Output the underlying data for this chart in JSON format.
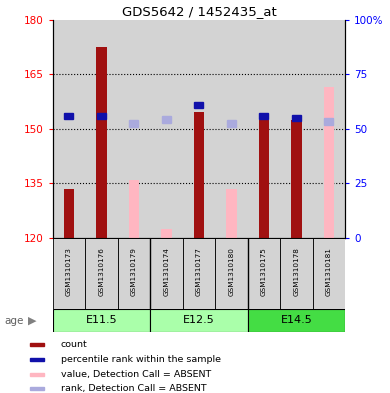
{
  "title": "GDS5642 / 1452435_at",
  "samples": [
    "GSM1310173",
    "GSM1310176",
    "GSM1310179",
    "GSM1310174",
    "GSM1310177",
    "GSM1310180",
    "GSM1310175",
    "GSM1310178",
    "GSM1310181"
  ],
  "age_groups": [
    {
      "label": "E11.5",
      "start": 0,
      "end": 3,
      "color": "#B8F0B8"
    },
    {
      "label": "E12.5",
      "start": 3,
      "end": 6,
      "color": "#B8F0B8"
    },
    {
      "label": "E14.5",
      "start": 6,
      "end": 9,
      "color": "#44DD44"
    }
  ],
  "ylim_left": [
    120,
    180
  ],
  "ylim_right": [
    0,
    100
  ],
  "yticks_left": [
    120,
    135,
    150,
    165,
    180
  ],
  "yticks_right": [
    0,
    25,
    50,
    75,
    100
  ],
  "ytick_labels_right": [
    "0",
    "25",
    "50",
    "75",
    "100%"
  ],
  "red_bar_values": [
    133.5,
    172.5,
    null,
    null,
    154.5,
    null,
    152.5,
    152.5,
    null
  ],
  "pink_bar_values": [
    null,
    null,
    136.0,
    122.5,
    null,
    133.5,
    null,
    null,
    161.5
  ],
  "blue_square_values": [
    153.5,
    153.5,
    null,
    null,
    156.5,
    null,
    153.5,
    153.0,
    null
  ],
  "lightblue_square_values": [
    null,
    null,
    151.5,
    152.5,
    null,
    151.5,
    null,
    null,
    152.0
  ],
  "red_bar_color": "#A01010",
  "pink_bar_color": "#FFB6C1",
  "blue_sq_color": "#1010AA",
  "lightblue_sq_color": "#AAAADD",
  "col_bg_color": "#D3D3D3",
  "age_color_light": "#AAFFAA",
  "age_color_dark": "#44DD44"
}
